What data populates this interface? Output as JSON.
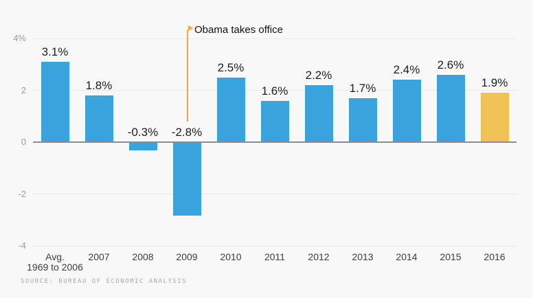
{
  "chart_data": {
    "type": "bar",
    "title": "",
    "categories": [
      "Avg.\n1969 to 2006",
      "2007",
      "2008",
      "2009",
      "2010",
      "2011",
      "2012",
      "2013",
      "2014",
      "2015",
      "2016"
    ],
    "values": [
      3.1,
      1.8,
      -0.3,
      -2.8,
      2.5,
      1.6,
      2.2,
      1.7,
      2.4,
      2.6,
      1.9
    ],
    "value_labels": [
      "3.1%",
      "1.8%",
      "-0.3%",
      "-2.8%",
      "2.5%",
      "1.6%",
      "2.2%",
      "1.7%",
      "2.4%",
      "2.6%",
      "1.9%"
    ],
    "highlight_index": 10,
    "bar_color": "#3aa2dd",
    "highlight_color": "#f0c155",
    "xlabel": "",
    "ylabel": "",
    "ylim": [
      -4,
      4
    ],
    "grid": true,
    "yticks": [
      {
        "value": 4,
        "label": "4%"
      },
      {
        "value": 2,
        "label": "2"
      },
      {
        "value": 0,
        "label": "0"
      },
      {
        "value": -2,
        "label": "-2"
      },
      {
        "value": -4,
        "label": "-4"
      }
    ],
    "annotation": {
      "text": "Obama takes office",
      "category_index": 3,
      "color": "#f0a73e"
    }
  },
  "source": {
    "label": "SOURCE: BUREAU OF ECONOMIC ANALYSIS"
  }
}
